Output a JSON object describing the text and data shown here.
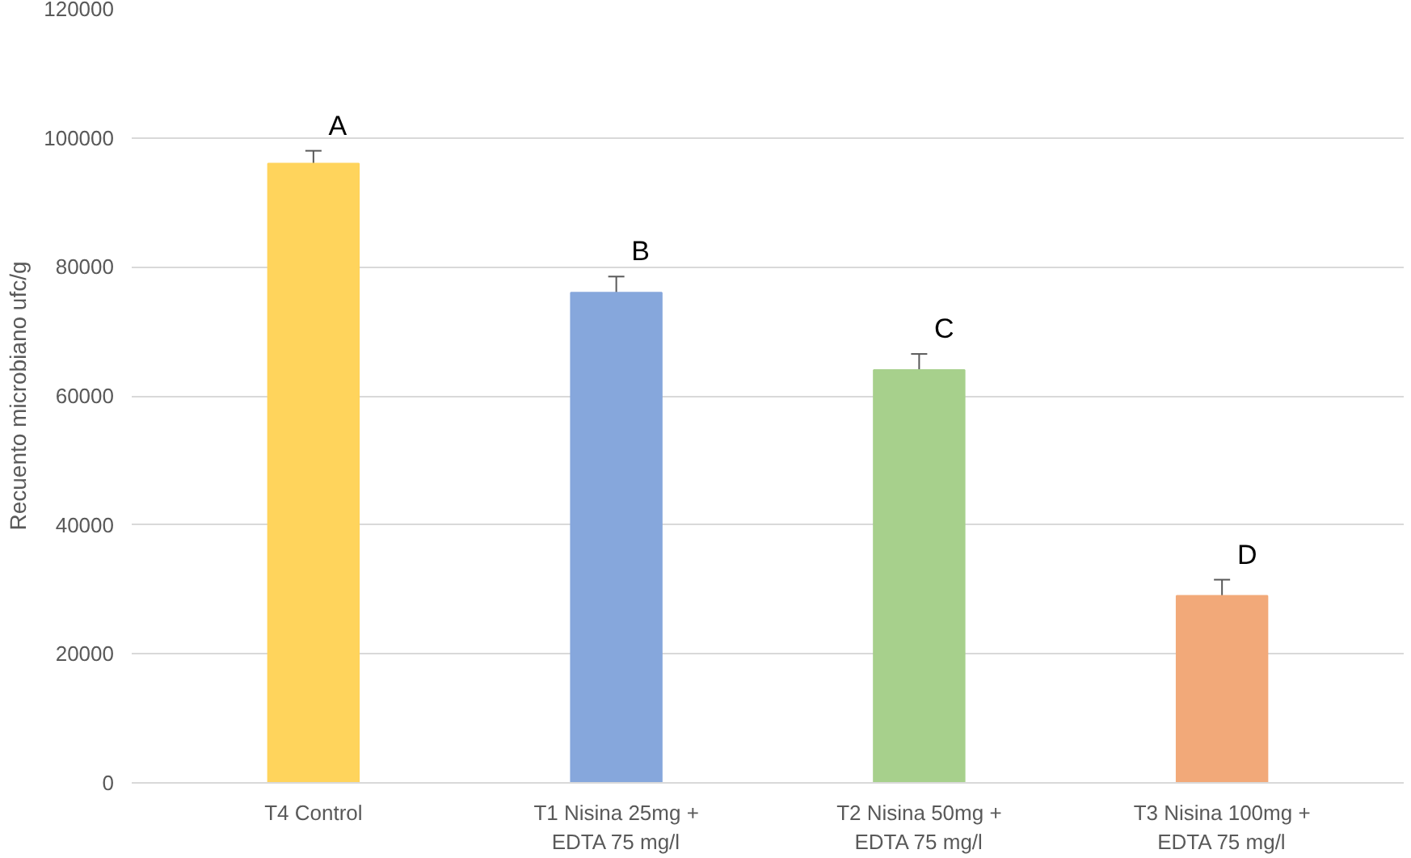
{
  "chart_data": {
    "type": "bar",
    "ylabel": "Recuento microbiano ufc/g",
    "categories": [
      "T4 Control",
      "T1 Nisina 25mg +\nEDTA 75 mg/l",
      "T2 Nisina 50mg +\nEDTA 75 mg/l",
      "T3 Nisina 100mg +\nEDTA 75 mg/l"
    ],
    "values": [
      96000,
      76000,
      64000,
      29000
    ],
    "errors": [
      2000,
      2500,
      2500,
      2500
    ],
    "colors": [
      "#ffd45c",
      "#86a7dc",
      "#a7d08c",
      "#f2a979"
    ],
    "ylim": [
      0,
      120000
    ],
    "yticks": [
      0,
      20000,
      40000,
      60000,
      80000,
      100000,
      120000
    ],
    "grid": "y",
    "annotations": [
      "A",
      "B",
      "C",
      "D"
    ]
  }
}
